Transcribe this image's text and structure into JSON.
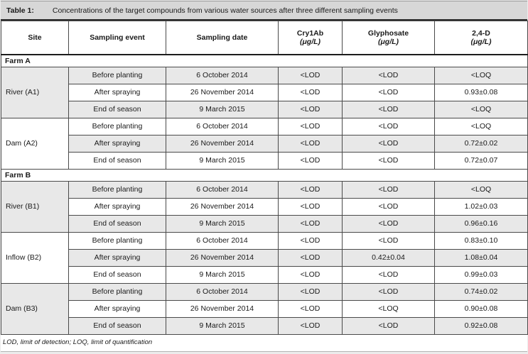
{
  "table": {
    "label": "Table 1:",
    "caption": "Concentrations of the target compounds from various water sources after three different sampling events",
    "footnote": "LOD, limit of detection; LOQ, limit of quantification",
    "stripe_color": "#e8e8e8",
    "title_bar_color": "#d7d7d7",
    "columns": [
      {
        "key": "site",
        "label": "Site"
      },
      {
        "key": "sampling-event",
        "label": "Sampling event"
      },
      {
        "key": "sampling-date",
        "label": "Sampling date"
      },
      {
        "key": "cry1ab",
        "label": "Cry1Ab",
        "unit": "(μg/L)"
      },
      {
        "key": "glyphosate",
        "label": "Glyphosate",
        "unit": "(μg/L)"
      },
      {
        "key": "2-4-d",
        "label": "2,4-D",
        "unit": "(μg/L)"
      }
    ],
    "sections": [
      {
        "title": "Farm A",
        "sites": [
          {
            "name": "River (A1)",
            "rows": [
              [
                "Before planting",
                "6 October 2014",
                "<LOD",
                "<LOD",
                "<LOQ"
              ],
              [
                "After spraying",
                "26 November 2014",
                "<LOD",
                "<LOD",
                "0.93±0.08"
              ],
              [
                "End of season",
                "9 March 2015",
                "<LOD",
                "<LOD",
                "<LOQ"
              ]
            ]
          },
          {
            "name": "Dam (A2)",
            "rows": [
              [
                "Before planting",
                "6 October 2014",
                "<LOD",
                "<LOD",
                "<LOQ"
              ],
              [
                "After spraying",
                "26 November 2014",
                "<LOD",
                "<LOD",
                "0.72±0.02"
              ],
              [
                "End of season",
                "9 March 2015",
                "<LOD",
                "<LOD",
                "0.72±0.07"
              ]
            ]
          }
        ]
      },
      {
        "title": "Farm B",
        "sites": [
          {
            "name": "River (B1)",
            "rows": [
              [
                "Before planting",
                "6 October 2014",
                "<LOD",
                "<LOD",
                "<LOQ"
              ],
              [
                "After spraying",
                "26 November 2014",
                "<LOD",
                "<LOD",
                "1.02±0.03"
              ],
              [
                "End of season",
                "9 March 2015",
                "<LOD",
                "<LOD",
                "0.96±0.16"
              ]
            ]
          },
          {
            "name": "Inflow (B2)",
            "rows": [
              [
                "Before planting",
                "6 October 2014",
                "<LOD",
                "<LOD",
                "0.83±0.10"
              ],
              [
                "After spraying",
                "26 November 2014",
                "<LOD",
                "0.42±0.04",
                "1.08±0.04"
              ],
              [
                "End of season",
                "9 March 2015",
                "<LOD",
                "<LOD",
                "0.99±0.03"
              ]
            ]
          },
          {
            "name": "Dam (B3)",
            "rows": [
              [
                "Before planting",
                "6 October 2014",
                "<LOD",
                "<LOD",
                "0.74±0.02"
              ],
              [
                "After spraying",
                "26 November 2014",
                "<LOD",
                "<LOQ",
                "0.90±0.08"
              ],
              [
                "End of season",
                "9 March 2015",
                "<LOD",
                "<LOD",
                "0.92±0.08"
              ]
            ]
          }
        ]
      }
    ]
  }
}
